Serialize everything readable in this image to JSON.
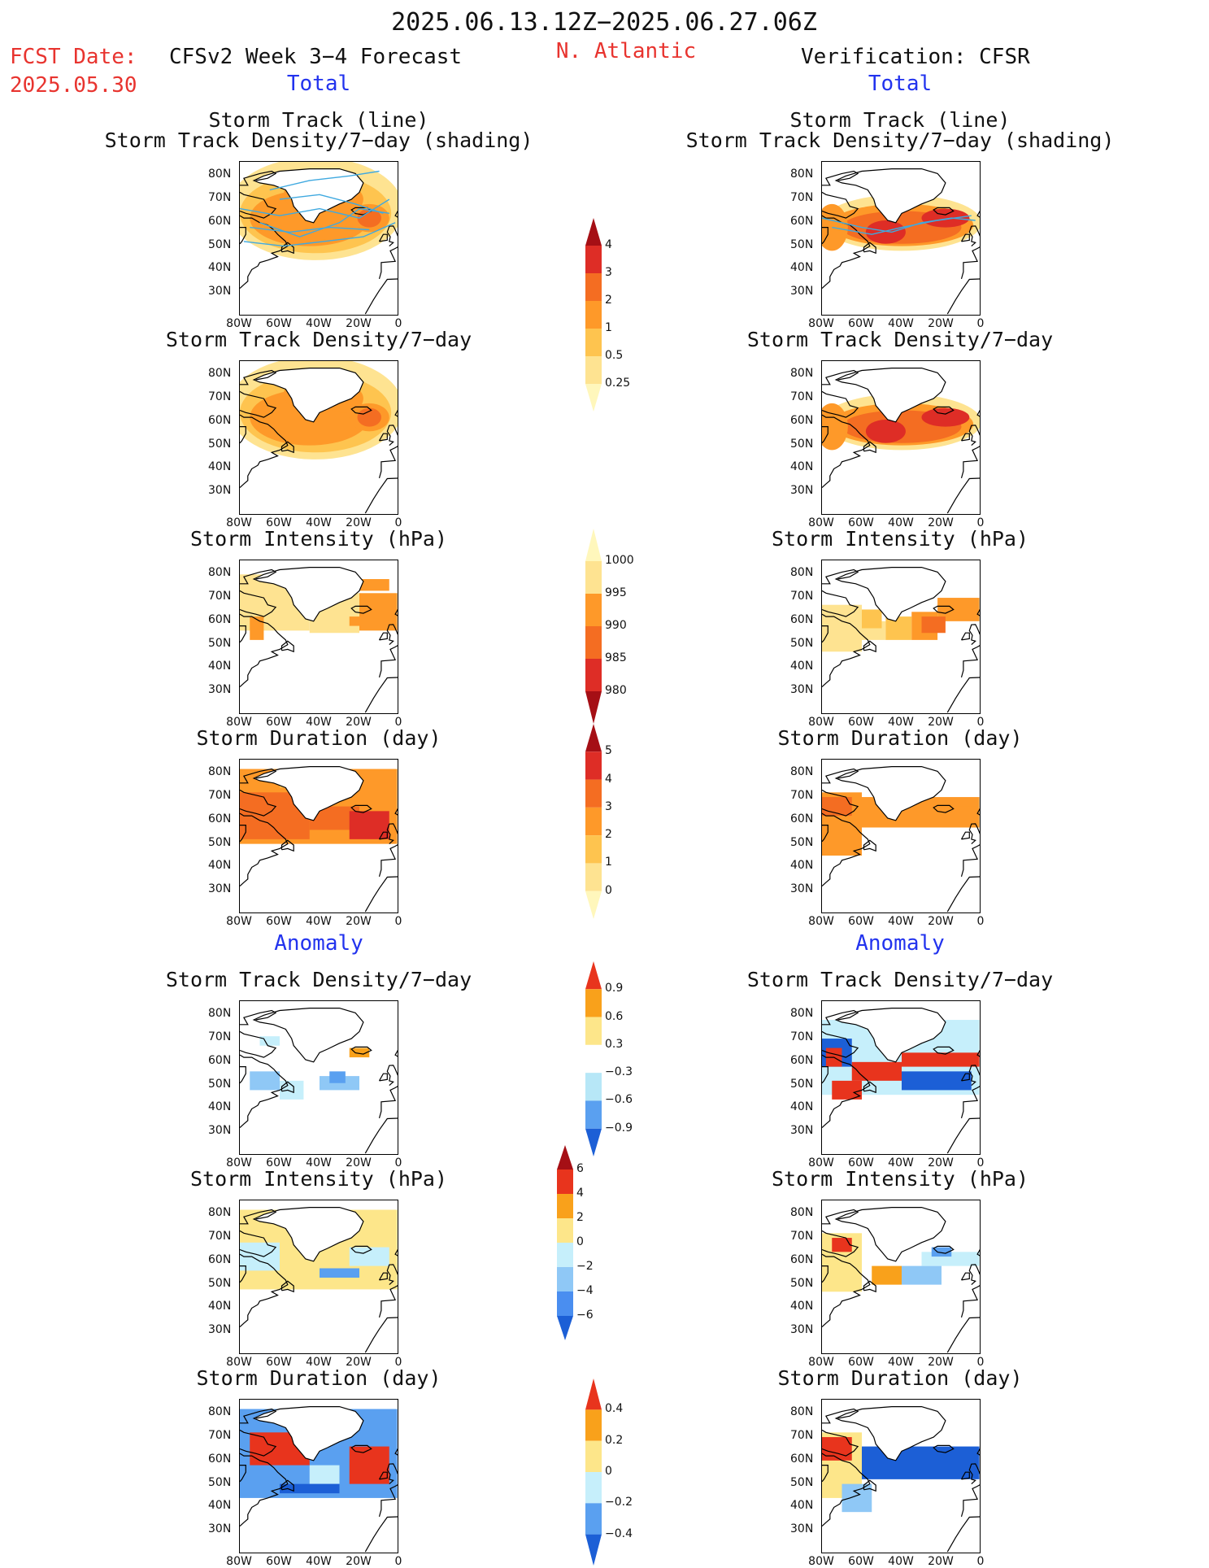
{
  "header": {
    "period": "2025.06.13.12Z−2025.06.27.06Z",
    "fcst_label": "FCST Date:",
    "fcst_date": "2025.05.30",
    "model_title": "CFSv2 Week 3−4 Forecast",
    "region": "N. Atlantic",
    "verification_title": "Verification: CFSR",
    "left_section_total": "Total",
    "right_section_total": "Total",
    "left_section_anomaly": "Anomaly",
    "right_section_anomaly": "Anomaly"
  },
  "panel_titles": {
    "track_line": "Storm Track (line)",
    "track_shading": "Storm Track Density/7−day (shading)",
    "density": "Storm Track Density/7−day",
    "intensity": "Storm Intensity (hPa)",
    "duration": "Storm Duration (day)"
  },
  "axes": {
    "lat_labels": [
      "80N",
      "70N",
      "60N",
      "50N",
      "40N",
      "30N"
    ],
    "lon_labels": [
      "80W",
      "60W",
      "40W",
      "20W",
      "0"
    ]
  },
  "colorbars": {
    "density_total": {
      "labels": [
        "4",
        "3",
        "2",
        "1",
        "0.5",
        "0.25"
      ],
      "colors": [
        "#a50f15",
        "#de2d26",
        "#f46d22",
        "#fe9929",
        "#fec44f",
        "#fee391",
        "#fff7bc"
      ]
    },
    "intensity_total": {
      "labels": [
        "1000",
        "995",
        "990",
        "985",
        "980"
      ],
      "colors": [
        "#fff7bc",
        "#fee391",
        "#fe9929",
        "#f46d22",
        "#de2d26",
        "#a50f15"
      ]
    },
    "duration_total": {
      "labels": [
        "5",
        "4",
        "3",
        "2",
        "1",
        "0"
      ],
      "colors": [
        "#a50f15",
        "#de2d26",
        "#f46d22",
        "#fe9929",
        "#fec44f",
        "#fee391",
        "#fff7bc"
      ]
    },
    "density_anom": {
      "labels": [
        "0.9",
        "0.6",
        "0.3",
        "−0.3",
        "−0.6",
        "−0.9"
      ],
      "colors": [
        "#e8341d",
        "#f9a11b",
        "#fde68a",
        "#ffffff",
        "#b7e7f7",
        "#5aa0f0",
        "#1c5fd6"
      ]
    },
    "intensity_anom": {
      "labels": [
        "6",
        "4",
        "2",
        "0",
        "−2",
        "−4",
        "−6"
      ],
      "colors": [
        "#a50f15",
        "#e8341d",
        "#f9a11b",
        "#fde68a",
        "#c6effb",
        "#8fc8f6",
        "#4a8ef0",
        "#1c5fd6"
      ]
    },
    "duration_anom": {
      "labels": [
        "0.4",
        "0.2",
        "0",
        "−0.2",
        "−0.4"
      ],
      "colors": [
        "#e8341d",
        "#f9a11b",
        "#fde68a",
        "#c6effb",
        "#5aa0f0",
        "#1c5fd6"
      ]
    }
  },
  "panels": [
    {
      "id": "L1",
      "title": "track_line",
      "title2": "track_shading",
      "fill": "density_total_model"
    },
    {
      "id": "R1",
      "title": "track_line",
      "title2": "track_shading",
      "fill": "density_total_obs"
    },
    {
      "id": "L2",
      "title": "density",
      "fill": "density_total_model"
    },
    {
      "id": "R2",
      "title": "density",
      "fill": "density_total_obs"
    },
    {
      "id": "L3",
      "title": "intensity",
      "fill": "intensity_total_model"
    },
    {
      "id": "R3",
      "title": "intensity",
      "fill": "intensity_total_obs"
    },
    {
      "id": "L4",
      "title": "duration",
      "fill": "duration_total_model"
    },
    {
      "id": "R4",
      "title": "duration",
      "fill": "duration_total_obs"
    },
    {
      "id": "L5",
      "title": "density",
      "fill": "density_anom_model"
    },
    {
      "id": "R5",
      "title": "density",
      "fill": "density_anom_obs"
    },
    {
      "id": "L6",
      "title": "intensity",
      "fill": "intensity_anom_model"
    },
    {
      "id": "R6",
      "title": "intensity",
      "fill": "intensity_anom_obs"
    },
    {
      "id": "L7",
      "title": "duration",
      "fill": "duration_anom_model"
    },
    {
      "id": "R7",
      "title": "duration",
      "fill": "duration_anom_obs"
    }
  ]
}
